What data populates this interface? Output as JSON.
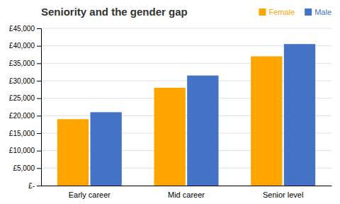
{
  "chart_data": {
    "type": "bar",
    "title": "Seniority and the gender gap",
    "categories": [
      "Early career",
      "Mid career",
      "Senior level"
    ],
    "series": [
      {
        "name": "Female",
        "color": "#FFA500",
        "values": [
          19000,
          28000,
          37000
        ]
      },
      {
        "name": "Male",
        "color": "#4472C4",
        "values": [
          21000,
          31500,
          40500
        ]
      }
    ],
    "ylim": [
      0,
      45000
    ],
    "yticks": [
      {
        "value": 0,
        "label": "£-"
      },
      {
        "value": 5000,
        "label": "£5,000"
      },
      {
        "value": 10000,
        "label": "£10,000"
      },
      {
        "value": 15000,
        "label": "£15,000"
      },
      {
        "value": 20000,
        "label": "£20,000"
      },
      {
        "value": 25000,
        "label": "£25,000"
      },
      {
        "value": 30000,
        "label": "£30,000"
      },
      {
        "value": 35000,
        "label": "£35,000"
      },
      {
        "value": 40000,
        "label": "£40,000"
      },
      {
        "value": 45000,
        "label": "£45,000"
      }
    ],
    "grid": true,
    "legend": "upper right"
  }
}
